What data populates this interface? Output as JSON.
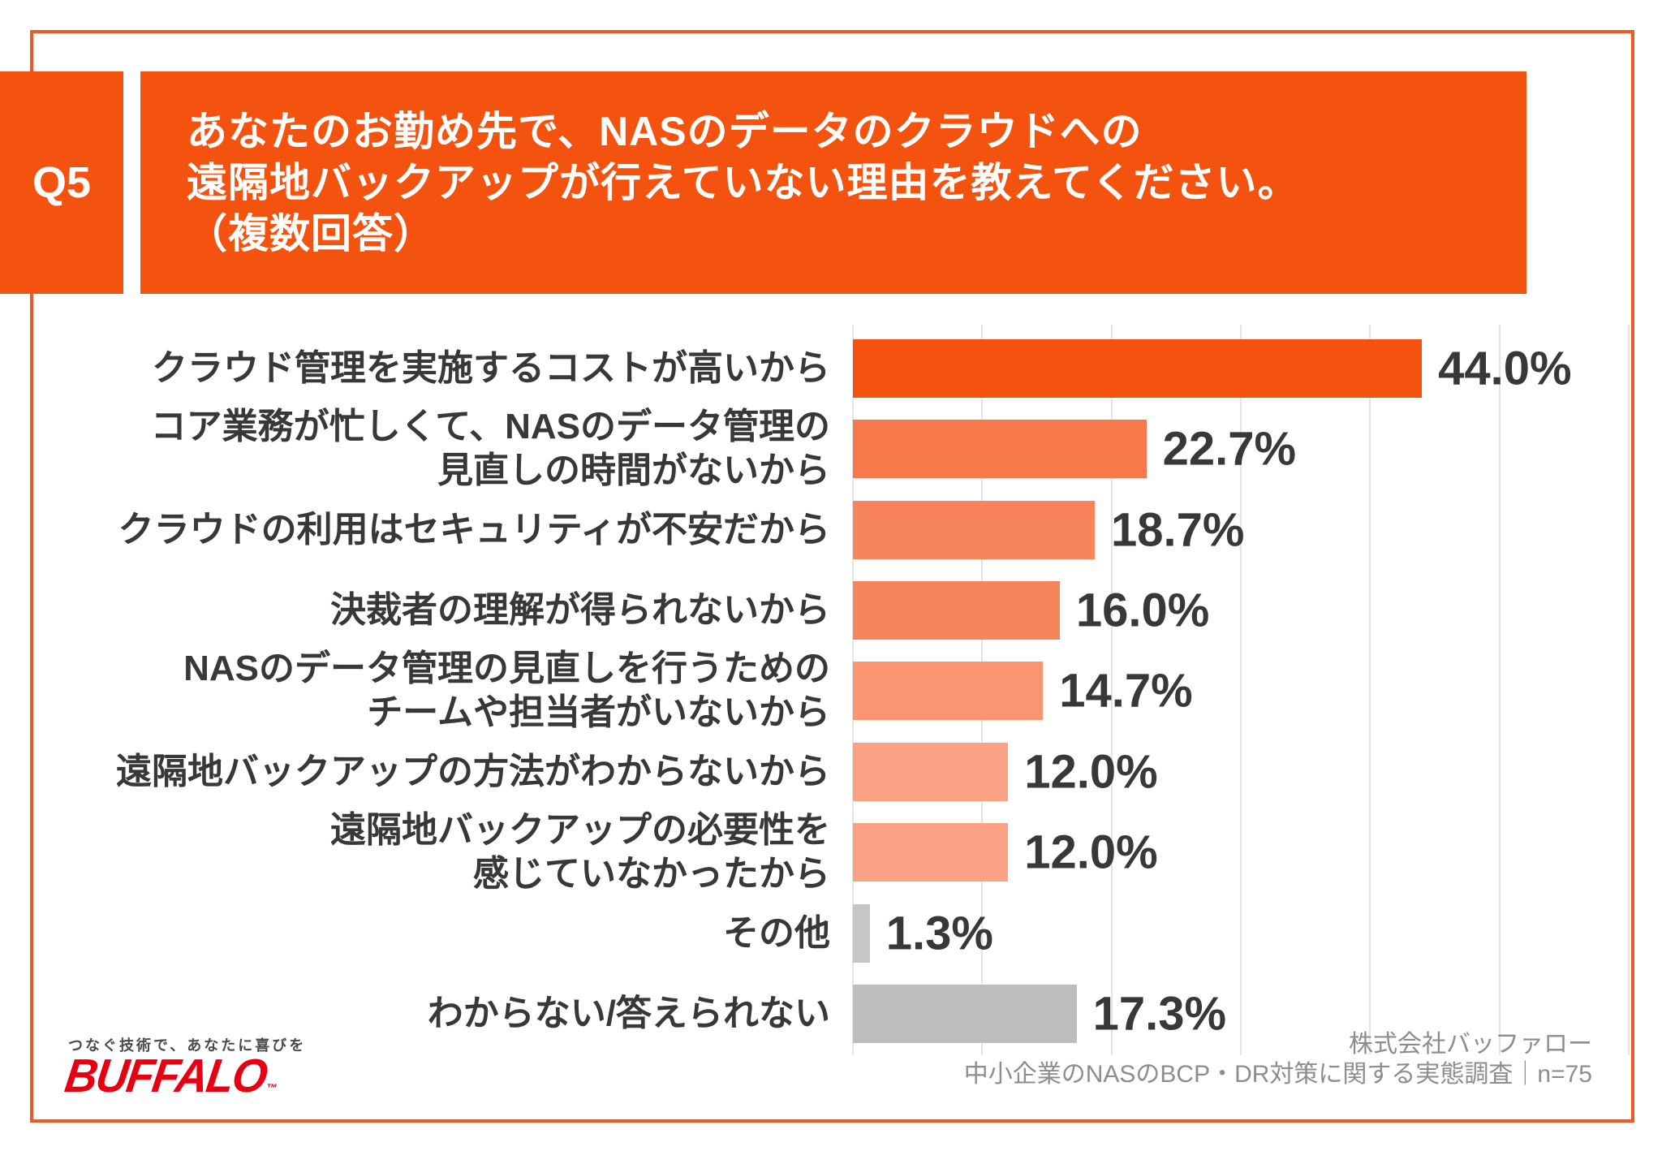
{
  "question": {
    "number": "Q5",
    "lines": [
      "あなたのお勤め先で、NASのデータのクラウドへの",
      "遠隔地バックアップが行えていない理由を教えてください。",
      "（複数回答）"
    ]
  },
  "chart_data": {
    "type": "bar",
    "orientation": "horizontal",
    "title": "あなたのお勤め先で、NASのデータのクラウドへの遠隔地バックアップが行えていない理由を教えてください。（複数回答）",
    "categories": [
      "クラウド管理を実施するコストが高いから",
      "コア業務が忙しくて、NASのデータ管理の見直しの時間がないから",
      "クラウドの利用はセキュリティが不安だから",
      "決裁者の理解が得られないから",
      "NASのデータ管理の見直しを行うためのチームや担当者がいないから",
      "遠隔地バックアップの方法がわからないから",
      "遠隔地バックアップの必要性を感じていなかったから",
      "その他",
      "わからない/答えられない"
    ],
    "label_lines": [
      [
        "クラウド管理を実施するコストが高いから"
      ],
      [
        "コア業務が忙しくて、NASのデータ管理の",
        "見直しの時間がないから"
      ],
      [
        "クラウドの利用はセキュリティが不安だから"
      ],
      [
        "決裁者の理解が得られないから"
      ],
      [
        "NASのデータ管理の見直しを行うための",
        "チームや担当者がいないから"
      ],
      [
        "遠隔地バックアップの方法がわからないから"
      ],
      [
        "遠隔地バックアップの必要性を",
        "感じていなかったから"
      ],
      [
        "その他"
      ],
      [
        "わからない/答えられない"
      ]
    ],
    "values": [
      44.0,
      22.7,
      18.7,
      16.0,
      14.7,
      12.0,
      12.0,
      1.3,
      17.3
    ],
    "value_labels": [
      "44.0%",
      "22.7%",
      "18.7%",
      "16.0%",
      "14.7%",
      "12.0%",
      "12.0%",
      "1.3%",
      "17.3%"
    ],
    "bar_colors": [
      "#F4520E",
      "#F7784A",
      "#F8845C",
      "#F8845C",
      "#F99571",
      "#FAA283",
      "#FAA283",
      "#C6C6C6",
      "#BDBDBD"
    ],
    "xlim": [
      0,
      60
    ],
    "gridline_interval": 10,
    "grid": true,
    "legend": "none"
  },
  "footer": {
    "tagline": "つなぐ技術で、あなたに喜びを",
    "logo_text": "BUFFALO",
    "trademark": "™",
    "source_line1": "株式会社バッファロー",
    "source_line2": "中小企業のNASのBCP・DR対策に関する実態調査｜n=75"
  },
  "colors": {
    "accent_orange": "#F4530F",
    "frame_orange": "#EC5B24",
    "gridline": "#E4E4E4",
    "text_dark": "#383838",
    "text_gray": "#8D8D8D",
    "logo_red": "#E60012"
  }
}
